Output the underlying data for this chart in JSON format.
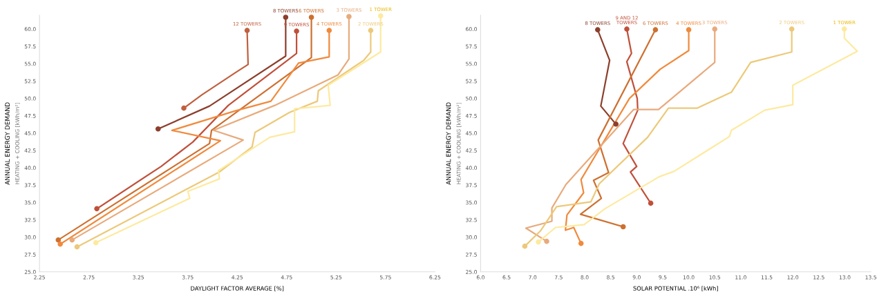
{
  "chart_data": [
    {
      "type": "line",
      "xlabel": "DAYLIGHT FACTOR AVERAGE [%]",
      "ylabel": "ANNUAL ENERGY DEMAND\nHEATING + COOLING [kWh/m²]",
      "xlim": [
        2.25,
        6.25
      ],
      "xticks": [
        2.25,
        2.75,
        3.25,
        3.75,
        4.25,
        4.75,
        5.25,
        5.75,
        6.25
      ],
      "ylim": [
        25.0,
        62.0
      ],
      "yticks": [
        {
          "value": 25,
          "label": "25.0"
        },
        27.5,
        {
          "value": 30,
          "label": "30.0"
        },
        32.5,
        {
          "value": 35,
          "label": "35.0"
        },
        37.5,
        {
          "value": 40,
          "label": "40.0"
        },
        42.5,
        {
          "value": 45,
          "label": "45.0"
        },
        47.5,
        {
          "value": 50,
          "label": "50.0"
        },
        52.5,
        {
          "value": 55,
          "label": "55.0"
        },
        57.5,
        {
          "value": 60,
          "label": "60.0"
        }
      ],
      "grid": false,
      "legend": false,
      "line_style": "solid",
      "series": [
        {
          "name": "12 TOWERS",
          "color": "#c0603f",
          "x": [
            3.71,
            3.89,
            4.23,
            4.36,
            4.35
          ],
          "values": [
            48.6,
            50.5,
            53.7,
            54.9,
            59.8
          ]
        },
        {
          "name": "8 TOWERS",
          "color": "#8c3f2c",
          "x": [
            3.45,
            3.97,
            4.74,
            4.74
          ],
          "values": [
            45.6,
            48.9,
            56.1,
            61.7
          ]
        },
        {
          "name": "9 TOWERS",
          "color": "#c0503a",
          "x": [
            2.83,
            3.48,
            3.8,
            4.16,
            4.85,
            4.85
          ],
          "values": [
            34.1,
            40.2,
            43.7,
            49.0,
            56.5,
            59.7
          ]
        },
        {
          "name": "6 TOWERS",
          "color": "#cd7030",
          "x": [
            2.44,
            3.97,
            3.99,
            5.0,
            5.0
          ],
          "values": [
            29.6,
            43.5,
            45.4,
            55.9,
            61.7
          ]
        },
        {
          "name": "4 TOWERS",
          "color": "#f08a3c",
          "x": [
            2.46,
            4.08,
            3.59,
            4.23,
            4.59,
            4.87,
            5.18,
            5.18
          ],
          "values": [
            29.0,
            43.9,
            45.4,
            48.2,
            49.6,
            55.1,
            56.0,
            59.8
          ]
        },
        {
          "name": "3 TOWERS",
          "color": "#e8aa7c",
          "x": [
            2.58,
            4.31,
            4.01,
            4.63,
            5.27,
            5.38,
            5.38
          ],
          "values": [
            29.6,
            44.0,
            45.4,
            49.0,
            53.4,
            55.7,
            61.8
          ]
        },
        {
          "name": "2 TOWERS",
          "color": "#ecc97a",
          "x": [
            2.63,
            4.07,
            4.4,
            4.43,
            4.78,
            5.06,
            5.07,
            5.53,
            5.6,
            5.6
          ],
          "values": [
            28.6,
            39.4,
            43.0,
            45.1,
            48.0,
            49.6,
            51.1,
            55.5,
            56.7,
            59.8
          ]
        },
        {
          "name": "1 TOWER",
          "color": "#fdeaa0",
          "x": [
            2.82,
            3.77,
            3.75,
            4.07,
            4.06,
            4.58,
            4.83,
            4.83,
            5.19,
            5.17,
            5.7,
            5.7
          ],
          "values": [
            29.2,
            35.6,
            36.6,
            38.4,
            39.6,
            44.4,
            45.2,
            48.5,
            49.0,
            51.9,
            56.7,
            61.9
          ]
        }
      ]
    },
    {
      "type": "line",
      "xlabel": "SOLAR POTENTIAL .10⁶ [kWh]",
      "ylabel": "ANNUAL ENERGY DEMAND\nHEATING + COOLING [kWh/m²]",
      "xlim": [
        6.0,
        13.5
      ],
      "xticks": [
        {
          "value": 6,
          "label": "6.0"
        },
        6.5,
        {
          "value": 7,
          "label": "7.0"
        },
        7.5,
        {
          "value": 8,
          "label": "8.0"
        },
        8.5,
        {
          "value": 9,
          "label": "9.0"
        },
        9.5,
        {
          "value": 10,
          "label": "10.0"
        },
        10.5,
        {
          "value": 11,
          "label": "11.0"
        },
        11.5,
        {
          "value": 12,
          "label": "12.0"
        },
        12.5,
        {
          "value": 13,
          "label": "13.0"
        },
        13.5
      ],
      "ylim": [
        25.0,
        62.0
      ],
      "yticks": [
        {
          "value": 25,
          "label": "25.0"
        },
        27.5,
        {
          "value": 30,
          "label": "30.0"
        },
        32.5,
        {
          "value": 35,
          "label": "35.0"
        },
        37.5,
        {
          "value": 40,
          "label": "40.0"
        },
        42.5,
        {
          "value": 45,
          "label": "45.0"
        },
        47.5,
        {
          "value": 50,
          "label": "50.0"
        },
        52.5,
        {
          "value": 55,
          "label": "55.0"
        },
        57.5,
        {
          "value": 60,
          "label": "60.0"
        }
      ],
      "grid": false,
      "legend": false,
      "line_style": "solid",
      "series": [
        {
          "name": "8 TOWERS",
          "color": "#8c3f2c",
          "x": [
            8.6,
            8.31,
            8.48,
            8.25
          ],
          "values": [
            46.3,
            48.9,
            55.5,
            59.9
          ]
        },
        {
          "name": "9 AND 12\nTOWERS",
          "color": "#c0503a",
          "x": [
            9.27,
            8.88,
            9.0,
            8.74,
            9.02,
            9.01,
            8.81,
            8.9,
            8.81
          ],
          "values": [
            34.9,
            39.4,
            40.2,
            43.5,
            48.3,
            50.0,
            55.3,
            56.5,
            60.0
          ]
        },
        {
          "name": "6 TOWERS",
          "color": "#cd7030",
          "x": [
            8.74,
            7.92,
            8.32,
            8.17,
            8.46,
            8.26,
            9.36
          ],
          "values": [
            31.5,
            33.3,
            35.6,
            38.2,
            39.3,
            44.0,
            59.9
          ]
        },
        {
          "name": "4 TOWERS",
          "color": "#f08a3c",
          "x": [
            7.93,
            7.79,
            7.63,
            7.66,
            7.98,
            7.93,
            8.86,
            9.45,
            10.0,
            10.0
          ],
          "values": [
            29.1,
            31.4,
            31.0,
            33.2,
            36.4,
            38.3,
            50.0,
            54.2,
            56.9,
            59.9
          ]
        },
        {
          "name": "3 TOWERS",
          "color": "#e8aa7c",
          "x": [
            7.27,
            6.87,
            7.37,
            7.37,
            7.64,
            8.94,
            9.42,
            10.5,
            10.5
          ],
          "values": [
            29.4,
            31.3,
            32.3,
            34.2,
            37.6,
            48.4,
            48.4,
            55.2,
            60.0
          ]
        },
        {
          "name": "2 TOWERS",
          "color": "#ecc97a",
          "x": [
            6.85,
            7.15,
            7.46,
            8.12,
            8.28,
            9.21,
            9.61,
            10.16,
            10.82,
            11.19,
            11.98,
            11.98
          ],
          "values": [
            28.7,
            30.9,
            34.4,
            35.1,
            37.7,
            44.4,
            48.6,
            48.6,
            50.9,
            55.2,
            56.7,
            60.0
          ]
        },
        {
          "name": "1 TOWER",
          "color": "#fdeaa0",
          "x": [
            7.11,
            7.44,
            7.99,
            8.39,
            9.43,
            9.72,
            10.78,
            10.82,
            11.46,
            12.0,
            12.0,
            13.24,
            12.99,
            12.99
          ],
          "values": [
            29.3,
            31.4,
            31.8,
            34.1,
            38.7,
            39.5,
            44.5,
            45.4,
            48.3,
            49.1,
            51.9,
            56.8,
            58.7,
            60.0
          ]
        }
      ]
    }
  ]
}
